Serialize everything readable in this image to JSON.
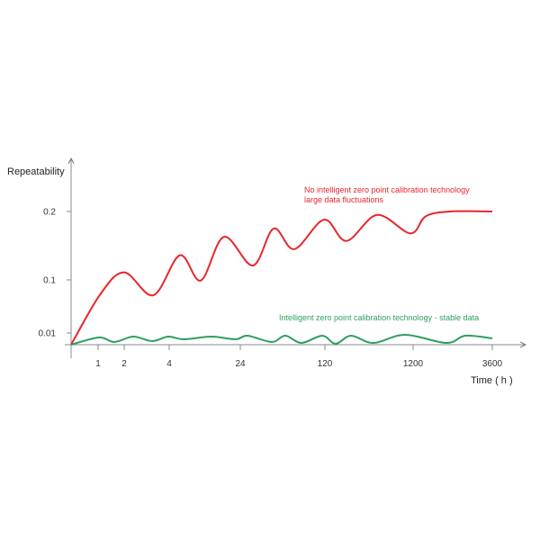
{
  "chart_data": {
    "type": "line",
    "title": "",
    "xlabel": "Time ( h )",
    "ylabel": "Repeatability",
    "x_ticks": [
      1,
      2,
      4,
      24,
      120,
      1200,
      3600
    ],
    "y_ticks": [
      0.01,
      0.1,
      0.2
    ],
    "x_scale": "non-uniform (tick positions evenly irregular, not linear)",
    "grid": false,
    "series": [
      {
        "name": "No intelligent zero point calibration technology",
        "annotation": [
          "No intelligent zero point calibration technology",
          "large data fluctuations"
        ],
        "color": "#e8262a",
        "points": [
          [
            0,
            0
          ],
          [
            1.09,
            0.076
          ],
          [
            2,
            0.111
          ],
          [
            3.3,
            0.074
          ],
          [
            7.0,
            0.136
          ],
          [
            12.9,
            0.099
          ],
          [
            19.4,
            0.163
          ],
          [
            38.3,
            0.121
          ],
          [
            61.8,
            0.175
          ],
          [
            85.3,
            0.145
          ],
          [
            119,
            0.188
          ],
          [
            384,
            0.157
          ],
          [
            759,
            0.195
          ],
          [
            1167,
            0.168
          ],
          [
            1582,
            0.193
          ],
          [
            2318,
            0.2
          ],
          [
            3600,
            0.2
          ]
        ]
      },
      {
        "name": "Intelligent zero point calibration technology - stable data",
        "annotation": [
          "Intelligent zero point calibration technology - stable data"
        ],
        "color": "#2e9e5e",
        "points": [
          [
            0,
            0
          ],
          [
            1.03,
            0.0062
          ],
          [
            1.62,
            0.0023
          ],
          [
            2.4,
            0.0069
          ],
          [
            3.24,
            0.0031
          ],
          [
            3.96,
            0.0069
          ],
          [
            8.1,
            0.0046
          ],
          [
            15.9,
            0.0069
          ],
          [
            22.7,
            0.0046
          ],
          [
            32.2,
            0.0077
          ],
          [
            59.8,
            0.0023
          ],
          [
            75.1,
            0.0077
          ],
          [
            93.4,
            0.0015
          ],
          [
            117,
            0.0077
          ],
          [
            252,
            0.0008
          ],
          [
            440,
            0.0077
          ],
          [
            715,
            0.0015
          ],
          [
            1101,
            0.0085
          ],
          [
            2209,
            0.0015
          ],
          [
            2782,
            0.0077
          ],
          [
            3600,
            0.0054
          ]
        ]
      }
    ]
  }
}
